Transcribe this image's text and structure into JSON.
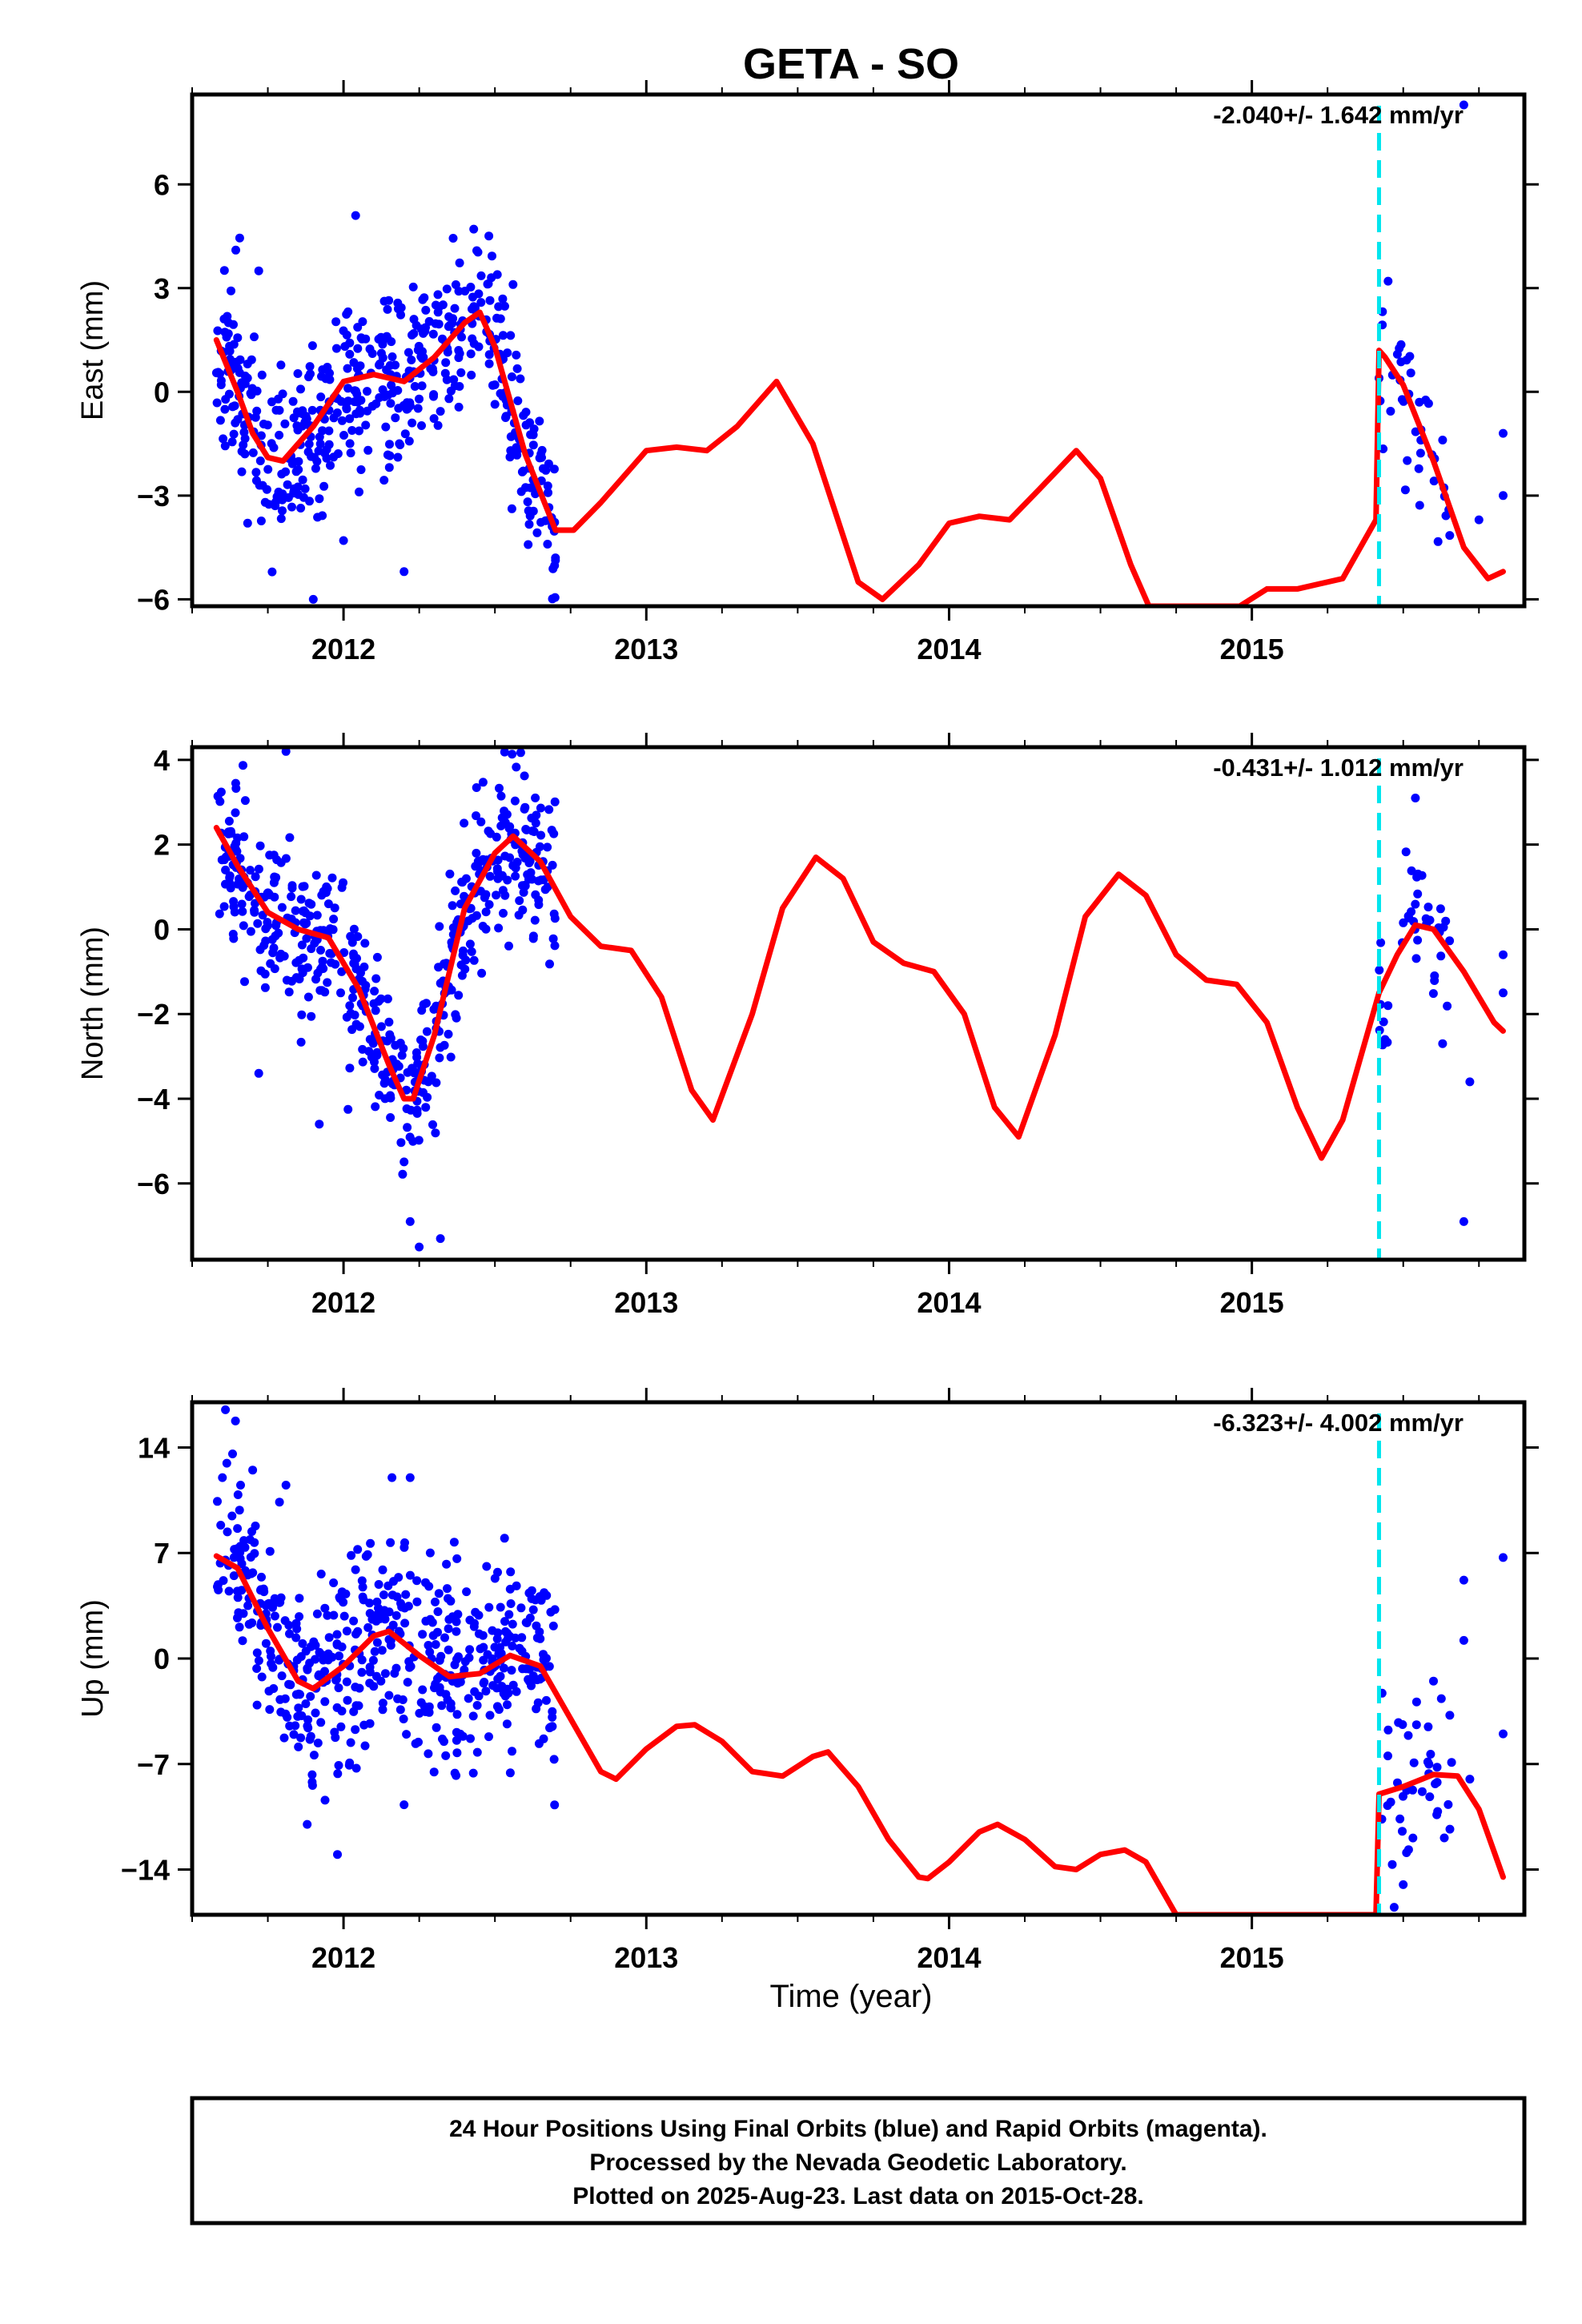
{
  "chart_data": {
    "type": "scatter",
    "title": "GETA - SO",
    "xlabel": "Time (year)",
    "x_ticks": [
      2012,
      2013,
      2014,
      2015
    ],
    "x_tick_labels": [
      "2012",
      "2013",
      "2014",
      "2015"
    ],
    "xlim": [
      2011.5,
      2015.9
    ],
    "offset_epoch": 2015.42,
    "offset_line_color": "#00e5ee",
    "point_color": "#0000ff",
    "model_color": "#ff0000",
    "data_gap": [
      2012.7,
      2015.42
    ],
    "panels": [
      {
        "component": "East",
        "ylabel": "East (mm)",
        "ylim": [
          -6.2,
          8.6
        ],
        "y_ticks": [
          -6,
          -3,
          0,
          3,
          6
        ],
        "rate_label": "-2.040+/- 1.642 mm/yr",
        "model": {
          "x": [
            2011.58,
            2011.65,
            2011.7,
            2011.75,
            2011.8,
            2011.9,
            2012.0,
            2012.1,
            2012.2,
            2012.3,
            2012.4,
            2012.45,
            2012.5,
            2012.6,
            2012.7,
            2012.76,
            2012.85,
            2013.0,
            2013.1,
            2013.2,
            2013.3,
            2013.43,
            2013.55,
            2013.7,
            2013.78,
            2013.9,
            2014.0,
            2014.1,
            2014.2,
            2014.3,
            2014.42,
            2014.5,
            2014.6,
            2014.66,
            2014.96,
            2015.05,
            2015.15,
            2015.3,
            2015.41,
            2015.42,
            2015.44,
            2015.5,
            2015.6,
            2015.7,
            2015.78,
            2015.83
          ],
          "y": [
            1.5,
            0.0,
            -1.2,
            -1.9,
            -2.0,
            -1.0,
            0.3,
            0.5,
            0.3,
            1.0,
            2.0,
            2.3,
            1.3,
            -1.8,
            -4.0,
            -4.0,
            -3.2,
            -1.7,
            -1.6,
            -1.7,
            -1.0,
            0.3,
            -1.5,
            -5.5,
            -6.0,
            -5.0,
            -3.8,
            -3.6,
            -3.7,
            -2.8,
            -1.7,
            -2.5,
            -5.0,
            -6.2,
            -6.2,
            -5.7,
            -5.7,
            -5.4,
            -3.7,
            1.2,
            1.0,
            0.2,
            -2.0,
            -4.5,
            -5.4,
            -5.2
          ]
        },
        "points": {
          "seed": 11,
          "count": 560,
          "scatter_sd": 1.3,
          "extra_points": [
            {
              "x": 2011.9,
              "y": -6.0
            },
            {
              "x": 2012.04,
              "y": 5.1
            },
            {
              "x": 2012.2,
              "y": -5.2
            },
            {
              "x": 2012.0,
              "y": -4.3
            },
            {
              "x": 2015.45,
              "y": 3.2
            },
            {
              "x": 2015.7,
              "y": 8.3
            },
            {
              "x": 2015.75,
              "y": -3.7
            },
            {
              "x": 2015.83,
              "y": -1.2
            },
            {
              "x": 2015.83,
              "y": -3.0
            },
            {
              "x": 2012.7,
              "y": -4.8
            },
            {
              "x": 2011.72,
              "y": 3.5
            }
          ]
        }
      },
      {
        "component": "North",
        "ylabel": "North (mm)",
        "ylim": [
          -7.8,
          4.3
        ],
        "y_ticks": [
          -6,
          -4,
          -2,
          0,
          2,
          4
        ],
        "rate_label": "-0.431+/- 1.012 mm/yr",
        "model": {
          "x": [
            2011.58,
            2011.65,
            2011.75,
            2011.85,
            2011.95,
            2012.05,
            2012.15,
            2012.2,
            2012.23,
            2012.3,
            2012.4,
            2012.5,
            2012.56,
            2012.65,
            2012.75,
            2012.85,
            2012.95,
            2013.05,
            2013.15,
            2013.22,
            2013.35,
            2013.45,
            2013.56,
            2013.65,
            2013.75,
            2013.85,
            2013.95,
            2014.05,
            2014.15,
            2014.23,
            2014.35,
            2014.45,
            2014.56,
            2014.65,
            2014.75,
            2014.85,
            2014.95,
            2015.05,
            2015.15,
            2015.23,
            2015.3,
            2015.36,
            2015.42,
            2015.48,
            2015.54,
            2015.6,
            2015.7,
            2015.8,
            2015.83
          ],
          "y": [
            2.4,
            1.5,
            0.4,
            0.0,
            -0.2,
            -1.4,
            -3.2,
            -4.0,
            -4.0,
            -2.5,
            0.5,
            1.8,
            2.2,
            1.6,
            0.3,
            -0.4,
            -0.5,
            -1.6,
            -3.8,
            -4.5,
            -2.0,
            0.5,
            1.7,
            1.2,
            -0.3,
            -0.8,
            -1.0,
            -2.0,
            -4.2,
            -4.9,
            -2.5,
            0.3,
            1.3,
            0.8,
            -0.6,
            -1.2,
            -1.3,
            -2.2,
            -4.2,
            -5.4,
            -4.5,
            -3.0,
            -1.5,
            -0.6,
            0.1,
            0.0,
            -1.0,
            -2.2,
            -2.4
          ]
        },
        "points": {
          "seed": 23,
          "count": 560,
          "scatter_sd": 0.9,
          "extra_points": [
            {
              "x": 2011.81,
              "y": 4.2
            },
            {
              "x": 2011.72,
              "y": -3.4
            },
            {
              "x": 2011.92,
              "y": -4.6
            },
            {
              "x": 2012.25,
              "y": -7.5
            },
            {
              "x": 2012.32,
              "y": -7.3
            },
            {
              "x": 2012.22,
              "y": -6.9
            },
            {
              "x": 2015.54,
              "y": 3.1
            },
            {
              "x": 2015.7,
              "y": -6.9
            },
            {
              "x": 2015.72,
              "y": -3.6
            },
            {
              "x": 2015.83,
              "y": -0.6
            },
            {
              "x": 2015.83,
              "y": -1.5
            },
            {
              "x": 2015.44,
              "y": -2.6
            },
            {
              "x": 2015.63,
              "y": -2.7
            }
          ]
        }
      },
      {
        "component": "Up",
        "ylabel": "Up (mm)",
        "ylim": [
          -17,
          17
        ],
        "y_ticks": [
          -14,
          -7,
          0,
          7,
          14
        ],
        "rate_label": "-6.323+/- 4.002 mm/yr",
        "model": {
          "x": [
            2011.58,
            2011.65,
            2011.75,
            2011.85,
            2011.9,
            2012.0,
            2012.1,
            2012.15,
            2012.25,
            2012.35,
            2012.45,
            2012.55,
            2012.65,
            2012.75,
            2012.85,
            2012.9,
            2013.0,
            2013.1,
            2013.16,
            2013.25,
            2013.35,
            2013.45,
            2013.55,
            2013.6,
            2013.7,
            2013.8,
            2013.9,
            2013.93,
            2014.0,
            2014.1,
            2014.16,
            2014.25,
            2014.35,
            2014.42,
            2014.5,
            2014.58,
            2014.65,
            2014.75,
            2015.41,
            2015.42,
            2015.5,
            2015.6,
            2015.68,
            2015.75,
            2015.83
          ],
          "y": [
            6.8,
            6.0,
            2.0,
            -1.5,
            -2.0,
            -0.5,
            1.5,
            1.8,
            0.2,
            -1.2,
            -1.0,
            0.2,
            -0.5,
            -4.0,
            -7.5,
            -8.0,
            -6.0,
            -4.5,
            -4.4,
            -5.5,
            -7.5,
            -7.8,
            -6.5,
            -6.2,
            -8.5,
            -12.0,
            -14.5,
            -14.6,
            -13.5,
            -11.5,
            -11.0,
            -12.0,
            -13.8,
            -14.0,
            -13.0,
            -12.7,
            -13.5,
            -17.0,
            -17.0,
            -9.0,
            -8.5,
            -7.7,
            -7.8,
            -10.0,
            -14.5
          ]
        },
        "points": {
          "seed": 37,
          "count": 560,
          "scatter_sd": 3.2,
          "extra_points": [
            {
              "x": 2011.61,
              "y": 16.5
            },
            {
              "x": 2011.6,
              "y": 12.0
            },
            {
              "x": 2011.66,
              "y": 11.5
            },
            {
              "x": 2011.7,
              "y": 12.5
            },
            {
              "x": 2011.81,
              "y": 11.5
            },
            {
              "x": 2011.98,
              "y": -13.0
            },
            {
              "x": 2011.88,
              "y": -11.0
            },
            {
              "x": 2012.16,
              "y": 12.0
            },
            {
              "x": 2012.22,
              "y": 12.0
            },
            {
              "x": 2012.2,
              "y": -9.7
            },
            {
              "x": 2015.43,
              "y": -2.3
            },
            {
              "x": 2015.47,
              "y": -16.5
            },
            {
              "x": 2015.5,
              "y": -15.0
            },
            {
              "x": 2015.6,
              "y": -1.5
            },
            {
              "x": 2015.7,
              "y": 5.2
            },
            {
              "x": 2015.7,
              "y": 1.2
            },
            {
              "x": 2015.83,
              "y": 6.7
            },
            {
              "x": 2015.83,
              "y": -5.0
            },
            {
              "x": 2015.72,
              "y": -8.0
            }
          ]
        }
      }
    ],
    "footnote_lines": [
      "24 Hour Positions Using Final Orbits (blue) and Rapid Orbits (magenta).",
      "Processed by the Nevada Geodetic Laboratory.",
      "Plotted on 2025-Aug-23. Last data on 2015-Oct-28."
    ]
  }
}
